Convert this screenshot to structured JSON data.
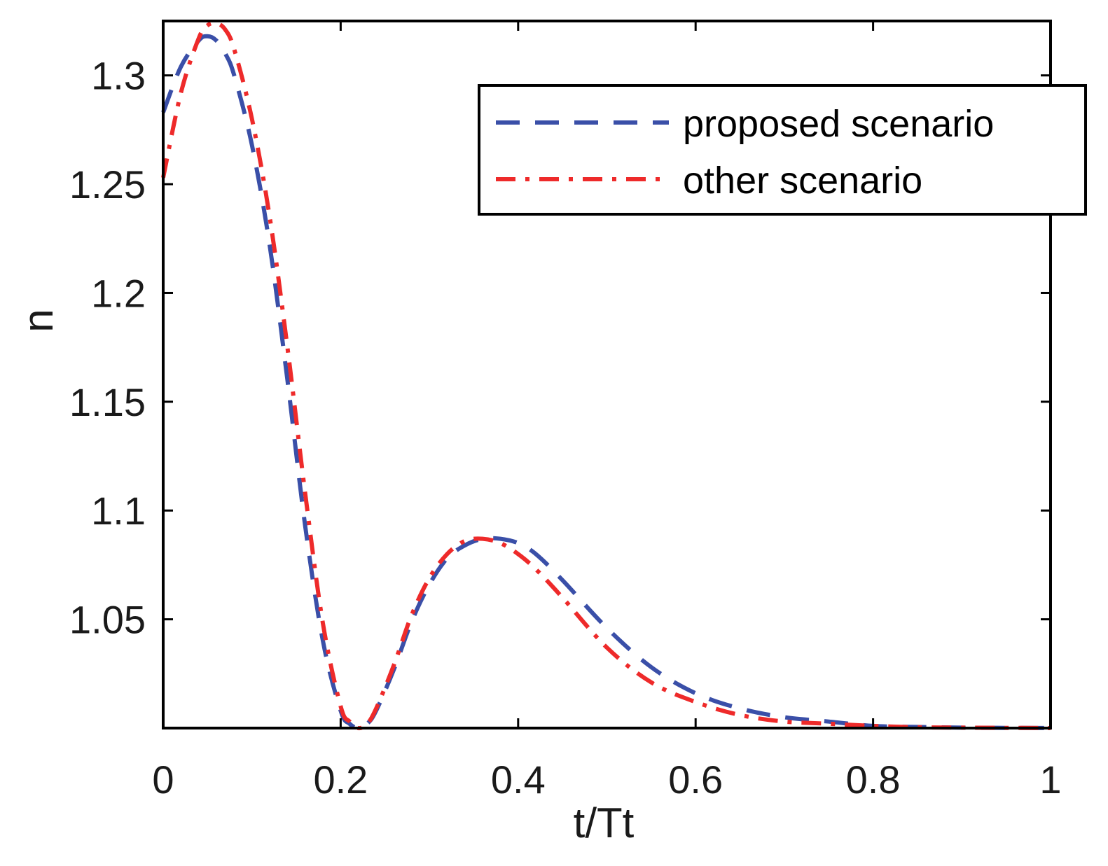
{
  "chart_data": {
    "type": "line",
    "title": "",
    "xlabel": "t/Tt",
    "ylabel": "n",
    "xlim": [
      0,
      1
    ],
    "ylim": [
      1.0,
      1.325
    ],
    "xticks": [
      0,
      0.2,
      0.4,
      0.6,
      0.8,
      1
    ],
    "xtick_labels": [
      "0",
      "0.2",
      "0.4",
      "0.6",
      "0.8",
      "1"
    ],
    "yticks": [
      1.05,
      1.1,
      1.15,
      1.2,
      1.25,
      1.3
    ],
    "ytick_labels": [
      "1.05",
      "1.1",
      "1.15",
      "1.2",
      "1.25",
      "1.3"
    ],
    "grid": false,
    "legend_position": "top-right",
    "series": [
      {
        "name": "proposed scenario",
        "color": "#3a4fa8",
        "style": "dashed",
        "x": [
          0,
          0.02,
          0.04,
          0.05,
          0.06,
          0.07,
          0.08,
          0.1,
          0.12,
          0.14,
          0.16,
          0.18,
          0.2,
          0.21,
          0.22,
          0.23,
          0.24,
          0.26,
          0.28,
          0.3,
          0.32,
          0.34,
          0.36,
          0.38,
          0.4,
          0.42,
          0.45,
          0.5,
          0.55,
          0.6,
          0.65,
          0.7,
          0.75,
          0.8,
          0.85,
          0.9,
          0.95,
          1.0
        ],
        "values": [
          1.283,
          1.304,
          1.316,
          1.318,
          1.316,
          1.31,
          1.3,
          1.268,
          1.222,
          1.16,
          1.093,
          1.04,
          1.008,
          1.002,
          1.0,
          1.002,
          1.008,
          1.027,
          1.049,
          1.066,
          1.078,
          1.084,
          1.087,
          1.087,
          1.085,
          1.08,
          1.068,
          1.046,
          1.028,
          1.016,
          1.009,
          1.005,
          1.003,
          1.001,
          1.0005,
          1.0002,
          1.0001,
          1.0
        ]
      },
      {
        "name": "other scenario",
        "color": "#ee2a2a",
        "style": "dashdot",
        "x": [
          0,
          0.02,
          0.04,
          0.05,
          0.06,
          0.07,
          0.08,
          0.1,
          0.12,
          0.14,
          0.16,
          0.18,
          0.2,
          0.21,
          0.22,
          0.23,
          0.24,
          0.26,
          0.28,
          0.3,
          0.32,
          0.34,
          0.36,
          0.38,
          0.4,
          0.42,
          0.45,
          0.5,
          0.55,
          0.6,
          0.65,
          0.7,
          0.75,
          0.8,
          0.85,
          0.9,
          0.95,
          1.0
        ],
        "values": [
          1.253,
          1.292,
          1.317,
          1.323,
          1.324,
          1.321,
          1.312,
          1.28,
          1.235,
          1.175,
          1.108,
          1.048,
          1.01,
          1.003,
          1.0,
          1.002,
          1.009,
          1.029,
          1.052,
          1.069,
          1.08,
          1.086,
          1.087,
          1.085,
          1.08,
          1.073,
          1.06,
          1.037,
          1.021,
          1.012,
          1.006,
          1.003,
          1.002,
          1.001,
          1.0004,
          1.0002,
          1.0001,
          1.0
        ]
      }
    ]
  }
}
